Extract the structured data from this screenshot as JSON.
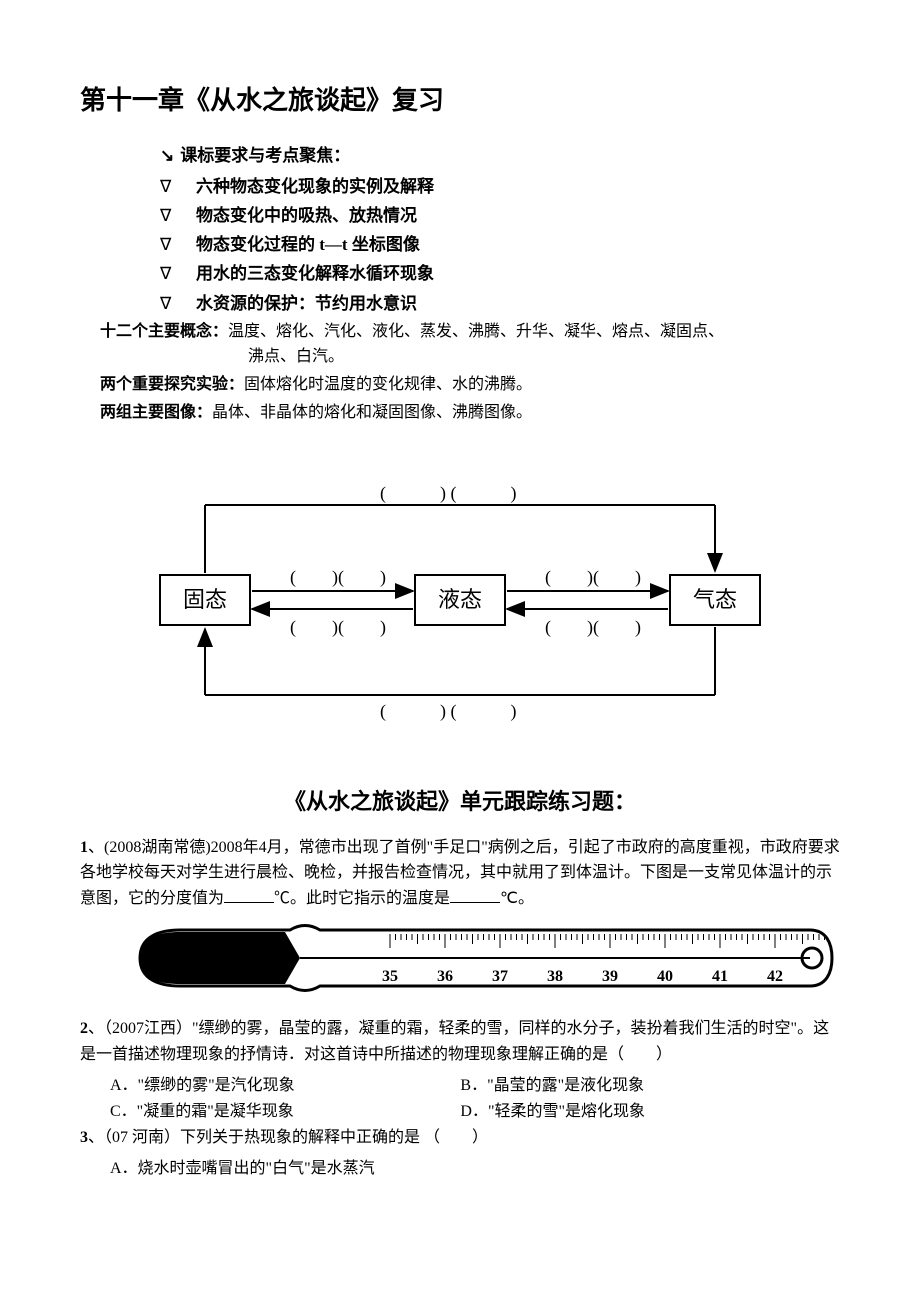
{
  "title": "第十一章《从水之旅谈起》复习",
  "subhead": "课标要求与考点聚焦：",
  "bullets": [
    "六种物态变化现象的实例及解释",
    "物态变化中的吸热、放热情况",
    "物态变化过程的 t—t 坐标图像",
    "用水的三态变化解释水循环现象",
    "水资源的保护：节约用水意识"
  ],
  "concepts_label": "十二个主要概念：",
  "concepts_line1": "温度、熔化、汽化、液化、蒸发、沸腾、升华、凝华、熔点、凝固点、",
  "concepts_line2": "沸点、白汽。",
  "exp_label": "两个重要探究实验：",
  "exp_text": "固体熔化时温度的变化规律、水的沸腾。",
  "img_label": "两组主要图像：",
  "img_text": "晶体、非晶体的熔化和凝固图像、沸腾图像。",
  "state_solid": "固态",
  "state_liquid": "液态",
  "state_gas": "气态",
  "section_title": "《从水之旅谈起》单元跟踪练习题：",
  "q1_num": "1",
  "q1_src": "、(2008湖南常德)",
  "q1_text_a": "2008年4月，常德市出现了首例\"手足口\"病例之后，引起了市政府的高度重视，市政府要求各地学校每天对学生进行晨检、晚检，并报告检查情况，其中就用了到体温计。下图是一支常见体温计的示意图，它的分度值为",
  "q1_text_b": "℃。此时它指示的温度是",
  "q1_text_c": "℃。",
  "thermo_ticks": [
    "35",
    "36",
    "37",
    "38",
    "39",
    "40",
    "41",
    "42"
  ],
  "q2_num": "2",
  "q2_src": "、（2007江西）",
  "q2_text": "\"缥缈的雾，晶莹的露，凝重的霜，轻柔的雪，同样的水分子，装扮着我们生活的时空\"。这是一首描述物理现象的抒情诗．对这首诗中所描述的物理现象理解正确的是（　　）",
  "q2_optA": "A．\"缥缈的雾\"是汽化现象",
  "q2_optB": "B．\"晶莹的露\"是液化现象",
  "q2_optC": "C．\"凝重的霜\"是凝华现象",
  "q2_optD": "D．\"轻柔的雪\"是熔化现象",
  "q3_num": "3",
  "q3_src": "、（07 河南）",
  "q3_text": "下列关于热现象的解释中正确的是 （　　）",
  "q3_optA": "A．烧水时壶嘴冒出的\"白气\"是水蒸汽"
}
